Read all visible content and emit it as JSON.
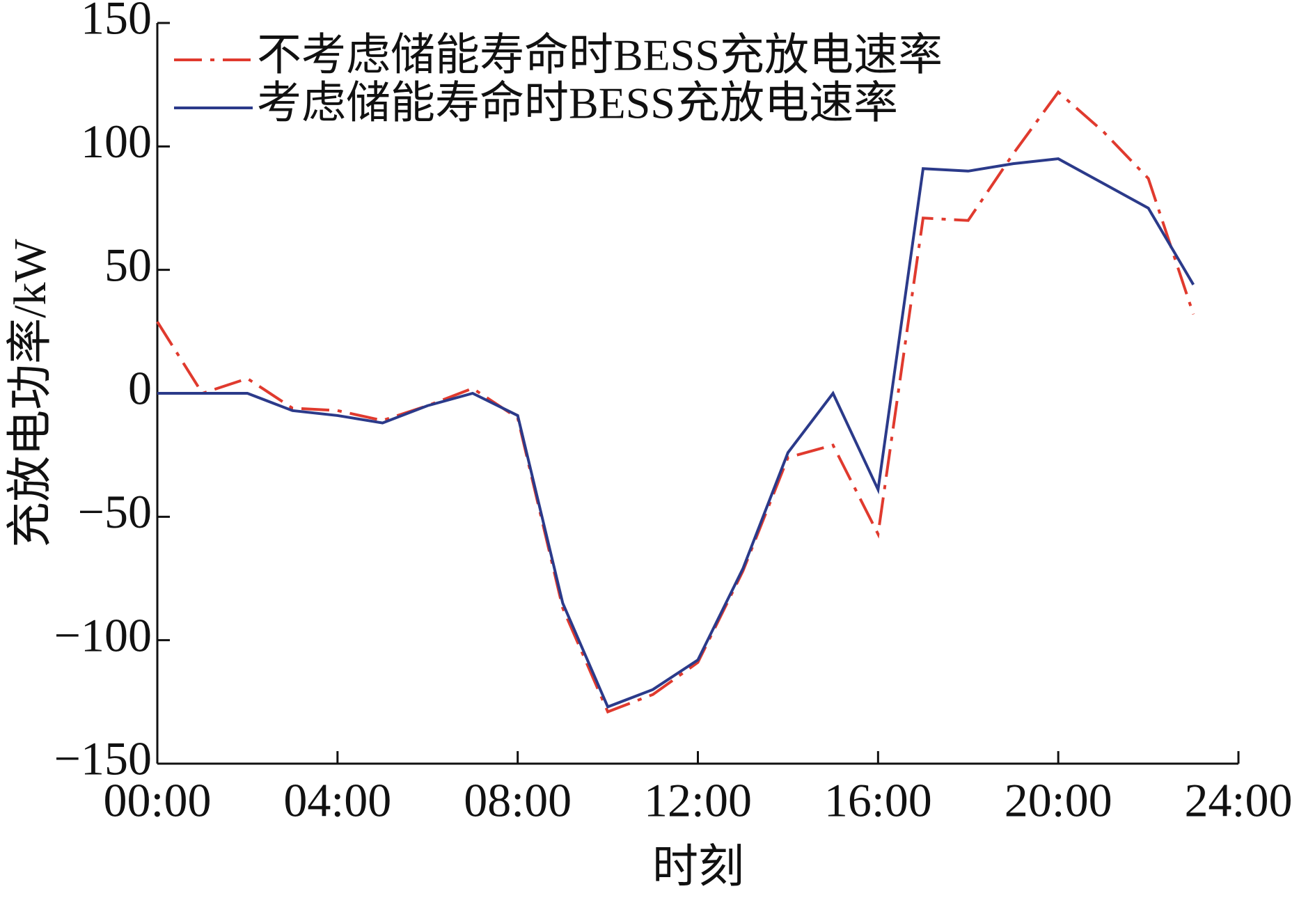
{
  "chart_data": {
    "type": "line",
    "x_label": "时刻",
    "y_label": "充放电功率/kW",
    "x": [
      0,
      1,
      2,
      3,
      4,
      5,
      6,
      7,
      8,
      9,
      10,
      11,
      12,
      13,
      14,
      15,
      16,
      17,
      18,
      19,
      20,
      21,
      22,
      23
    ],
    "series": [
      {
        "name": "不考虑储能寿命时BESS充放电速率",
        "color": "#e03a2e",
        "dash": "dashdot",
        "values": [
          29,
          0,
          6,
          -6,
          -7,
          -11,
          -5,
          2,
          -10,
          -87,
          -129,
          -122,
          -109,
          -72,
          -26,
          -21,
          -57,
          71,
          70,
          97,
          122,
          106,
          87,
          32
        ]
      },
      {
        "name": "考虑储能寿命时BESS充放电速率",
        "color": "#2b3a8a",
        "dash": "solid",
        "values": [
          0,
          0,
          0,
          -7,
          -9,
          -12,
          -5,
          0,
          -9,
          -85,
          -127,
          -120,
          -108,
          -71,
          -24,
          0,
          -39,
          91,
          90,
          93,
          95,
          85,
          75,
          44
        ]
      }
    ],
    "xlim": [
      0,
      24
    ],
    "xticks": [
      {
        "value": 0,
        "label": "00:00"
      },
      {
        "value": 4,
        "label": "04:00"
      },
      {
        "value": 8,
        "label": "08:00"
      },
      {
        "value": 12,
        "label": "12:00"
      },
      {
        "value": 16,
        "label": "16:00"
      },
      {
        "value": 20,
        "label": "20:00"
      },
      {
        "value": 24,
        "label": "24:00"
      }
    ],
    "ylim": [
      -150,
      150
    ],
    "yticks": [
      {
        "value": -150,
        "label": "−150"
      },
      {
        "value": -100,
        "label": "−100"
      },
      {
        "value": -50,
        "label": "−50"
      },
      0,
      50,
      100,
      150
    ],
    "legend": "top-left",
    "grid": false
  }
}
